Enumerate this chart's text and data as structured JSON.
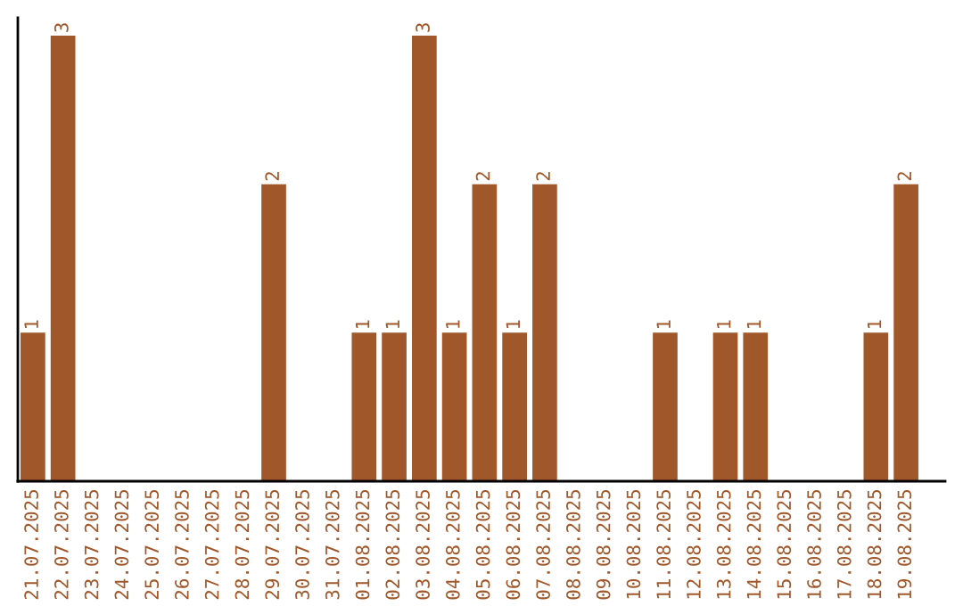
{
  "chart_data": {
    "type": "bar",
    "categories": [
      "21.07.2025",
      "22.07.2025",
      "23.07.2025",
      "24.07.2025",
      "25.07.2025",
      "26.07.2025",
      "27.07.2025",
      "28.07.2025",
      "29.07.2025",
      "30.07.2025",
      "31.07.2025",
      "01.08.2025",
      "02.08.2025",
      "03.08.2025",
      "04.08.2025",
      "05.08.2025",
      "06.08.2025",
      "07.08.2025",
      "08.08.2025",
      "09.08.2025",
      "10.08.2025",
      "11.08.2025",
      "12.08.2025",
      "13.08.2025",
      "14.08.2025",
      "15.08.2025",
      "16.08.2025",
      "17.08.2025",
      "18.08.2025",
      "19.08.2025"
    ],
    "values": [
      1,
      3,
      0,
      0,
      0,
      0,
      0,
      0,
      2,
      0,
      0,
      1,
      1,
      3,
      1,
      2,
      1,
      2,
      0,
      0,
      0,
      1,
      0,
      1,
      1,
      0,
      0,
      0,
      1,
      2
    ],
    "value_labels": [
      "1",
      "3",
      null,
      null,
      null,
      null,
      null,
      null,
      "2",
      null,
      null,
      "1",
      "1",
      "3",
      "1",
      "2",
      "1",
      "2",
      null,
      null,
      null,
      "1",
      null,
      "1",
      "1",
      null,
      null,
      null,
      "1",
      "2"
    ],
    "color": "#a0572a",
    "grid": false,
    "legend": false
  }
}
